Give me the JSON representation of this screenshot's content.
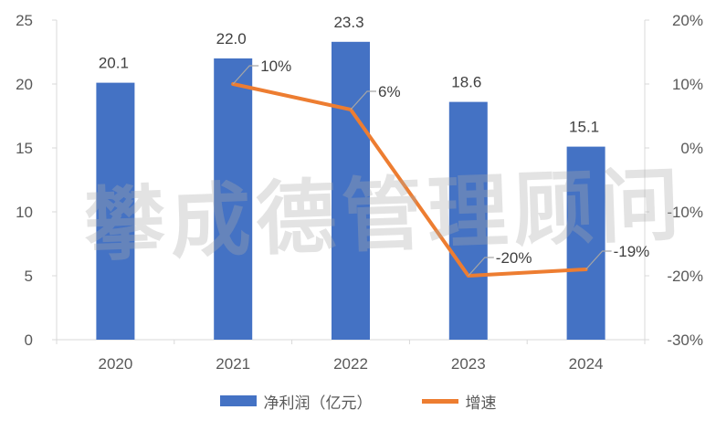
{
  "watermark": "攀成德管理顾问",
  "chart_data": {
    "type": "bar",
    "categories": [
      "2020",
      "2021",
      "2022",
      "2023",
      "2024"
    ],
    "series": [
      {
        "name": "净利润（亿元）",
        "type": "bar",
        "axis": "left",
        "color": "#4472C4",
        "values": [
          20.1,
          22.0,
          23.3,
          18.6,
          15.1
        ],
        "labels": [
          "20.1",
          "22.0",
          "23.3",
          "18.6",
          "15.1"
        ]
      },
      {
        "name": "增速",
        "type": "line",
        "axis": "right",
        "color": "#ED7D31",
        "values": [
          null,
          10,
          6,
          -20,
          -19
        ],
        "labels": [
          "",
          "10%",
          "6%",
          "-20%",
          "-19%"
        ]
      }
    ],
    "y_left": {
      "min": 0,
      "max": 25,
      "ticks": [
        "0",
        "5",
        "10",
        "15",
        "20",
        "25"
      ]
    },
    "y_right": {
      "min": -30,
      "max": 20,
      "ticks": [
        "-30%",
        "-20%",
        "-10%",
        "0%",
        "10%",
        "20%"
      ]
    },
    "legend": "bottom",
    "grid": false
  }
}
